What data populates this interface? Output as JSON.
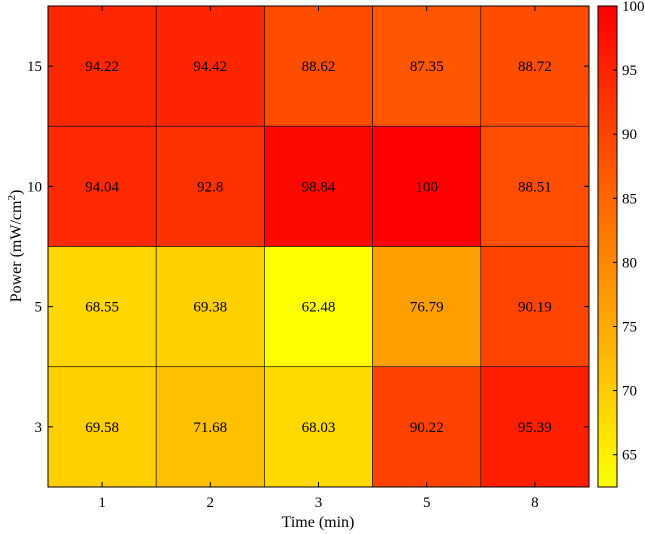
{
  "chart_data": {
    "type": "heatmap",
    "xlabel": "Time (min)",
    "ylabel_main": "Power (mW/cm",
    "ylabel_sup": "2",
    "ylabel_close": ")",
    "x_categories": [
      "1",
      "2",
      "3",
      "5",
      "8"
    ],
    "y_categories": [
      "15",
      "10",
      "5",
      "3"
    ],
    "values": [
      [
        94.22,
        94.42,
        88.62,
        87.35,
        88.72
      ],
      [
        94.04,
        92.8,
        98.84,
        100,
        88.51
      ],
      [
        68.55,
        69.38,
        62.48,
        76.79,
        90.19
      ],
      [
        69.58,
        71.68,
        68.03,
        90.22,
        95.39
      ]
    ],
    "value_labels": [
      [
        "94.22",
        "94.42",
        "88.62",
        "87.35",
        "88.72"
      ],
      [
        "94.04",
        "92.8",
        "98.84",
        "100",
        "88.51"
      ],
      [
        "68.55",
        "69.38",
        "62.48",
        "76.79",
        "90.19"
      ],
      [
        "69.58",
        "71.68",
        "68.03",
        "90.22",
        "95.39"
      ]
    ],
    "colorbar": {
      "min": 62.48,
      "max": 100,
      "ticks": [
        "65",
        "70",
        "75",
        "80",
        "85",
        "90",
        "95",
        "100"
      ],
      "colormap": "autumn-reversed",
      "low_color": "#ffff00",
      "high_color": "#ff0000"
    },
    "grid": true,
    "legend": "colorbar-right"
  }
}
